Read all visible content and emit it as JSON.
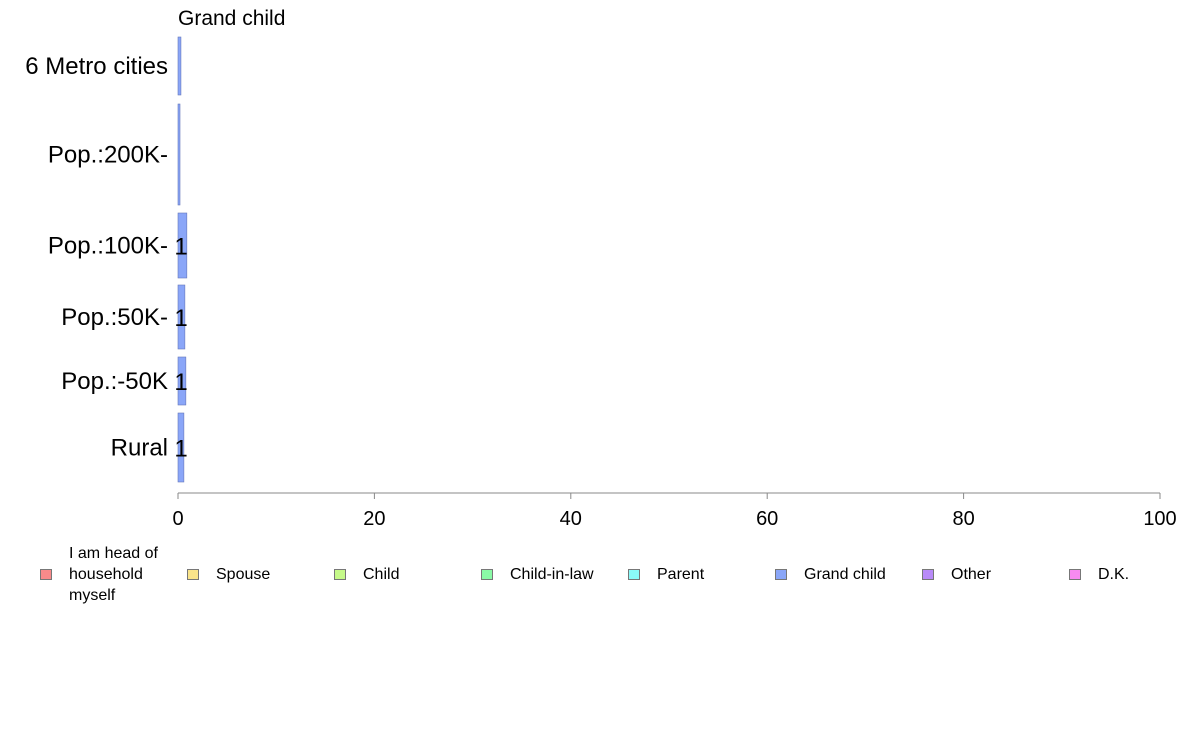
{
  "chart_data": {
    "type": "bar",
    "orientation": "horizontal",
    "title": "Grand child",
    "categories": [
      "6 Metro cities",
      "Pop.:200K-",
      "Pop.:100K-",
      "Pop.:50K-",
      "Pop.:-50K",
      "Rural"
    ],
    "series": [
      {
        "name": "Grand child",
        "values": [
          0.3,
          0.2,
          0.9,
          0.7,
          0.8,
          0.6
        ],
        "data_labels": [
          "",
          "",
          "1",
          "1",
          "1",
          "1"
        ],
        "color": "#8aa6f8"
      }
    ],
    "xlim": [
      0,
      100
    ],
    "x_ticks": [
      "0",
      "20",
      "40",
      "60",
      "80",
      "100"
    ],
    "grid": false,
    "legend_position": "bottom"
  },
  "legend": {
    "items": [
      {
        "label": "I am head of\nhousehold\nmyself",
        "color": "#f88a8a"
      },
      {
        "label": "Spouse",
        "color": "#fae48a"
      },
      {
        "label": "Child",
        "color": "#c6fa8a"
      },
      {
        "label": "Child-in-law",
        "color": "#8afaa6"
      },
      {
        "label": "Parent",
        "color": "#8afaf8"
      },
      {
        "label": "Grand child",
        "color": "#8aa6f8"
      },
      {
        "label": "Other",
        "color": "#b88af8"
      },
      {
        "label": "D.K.",
        "color": "#f88af0"
      }
    ]
  }
}
